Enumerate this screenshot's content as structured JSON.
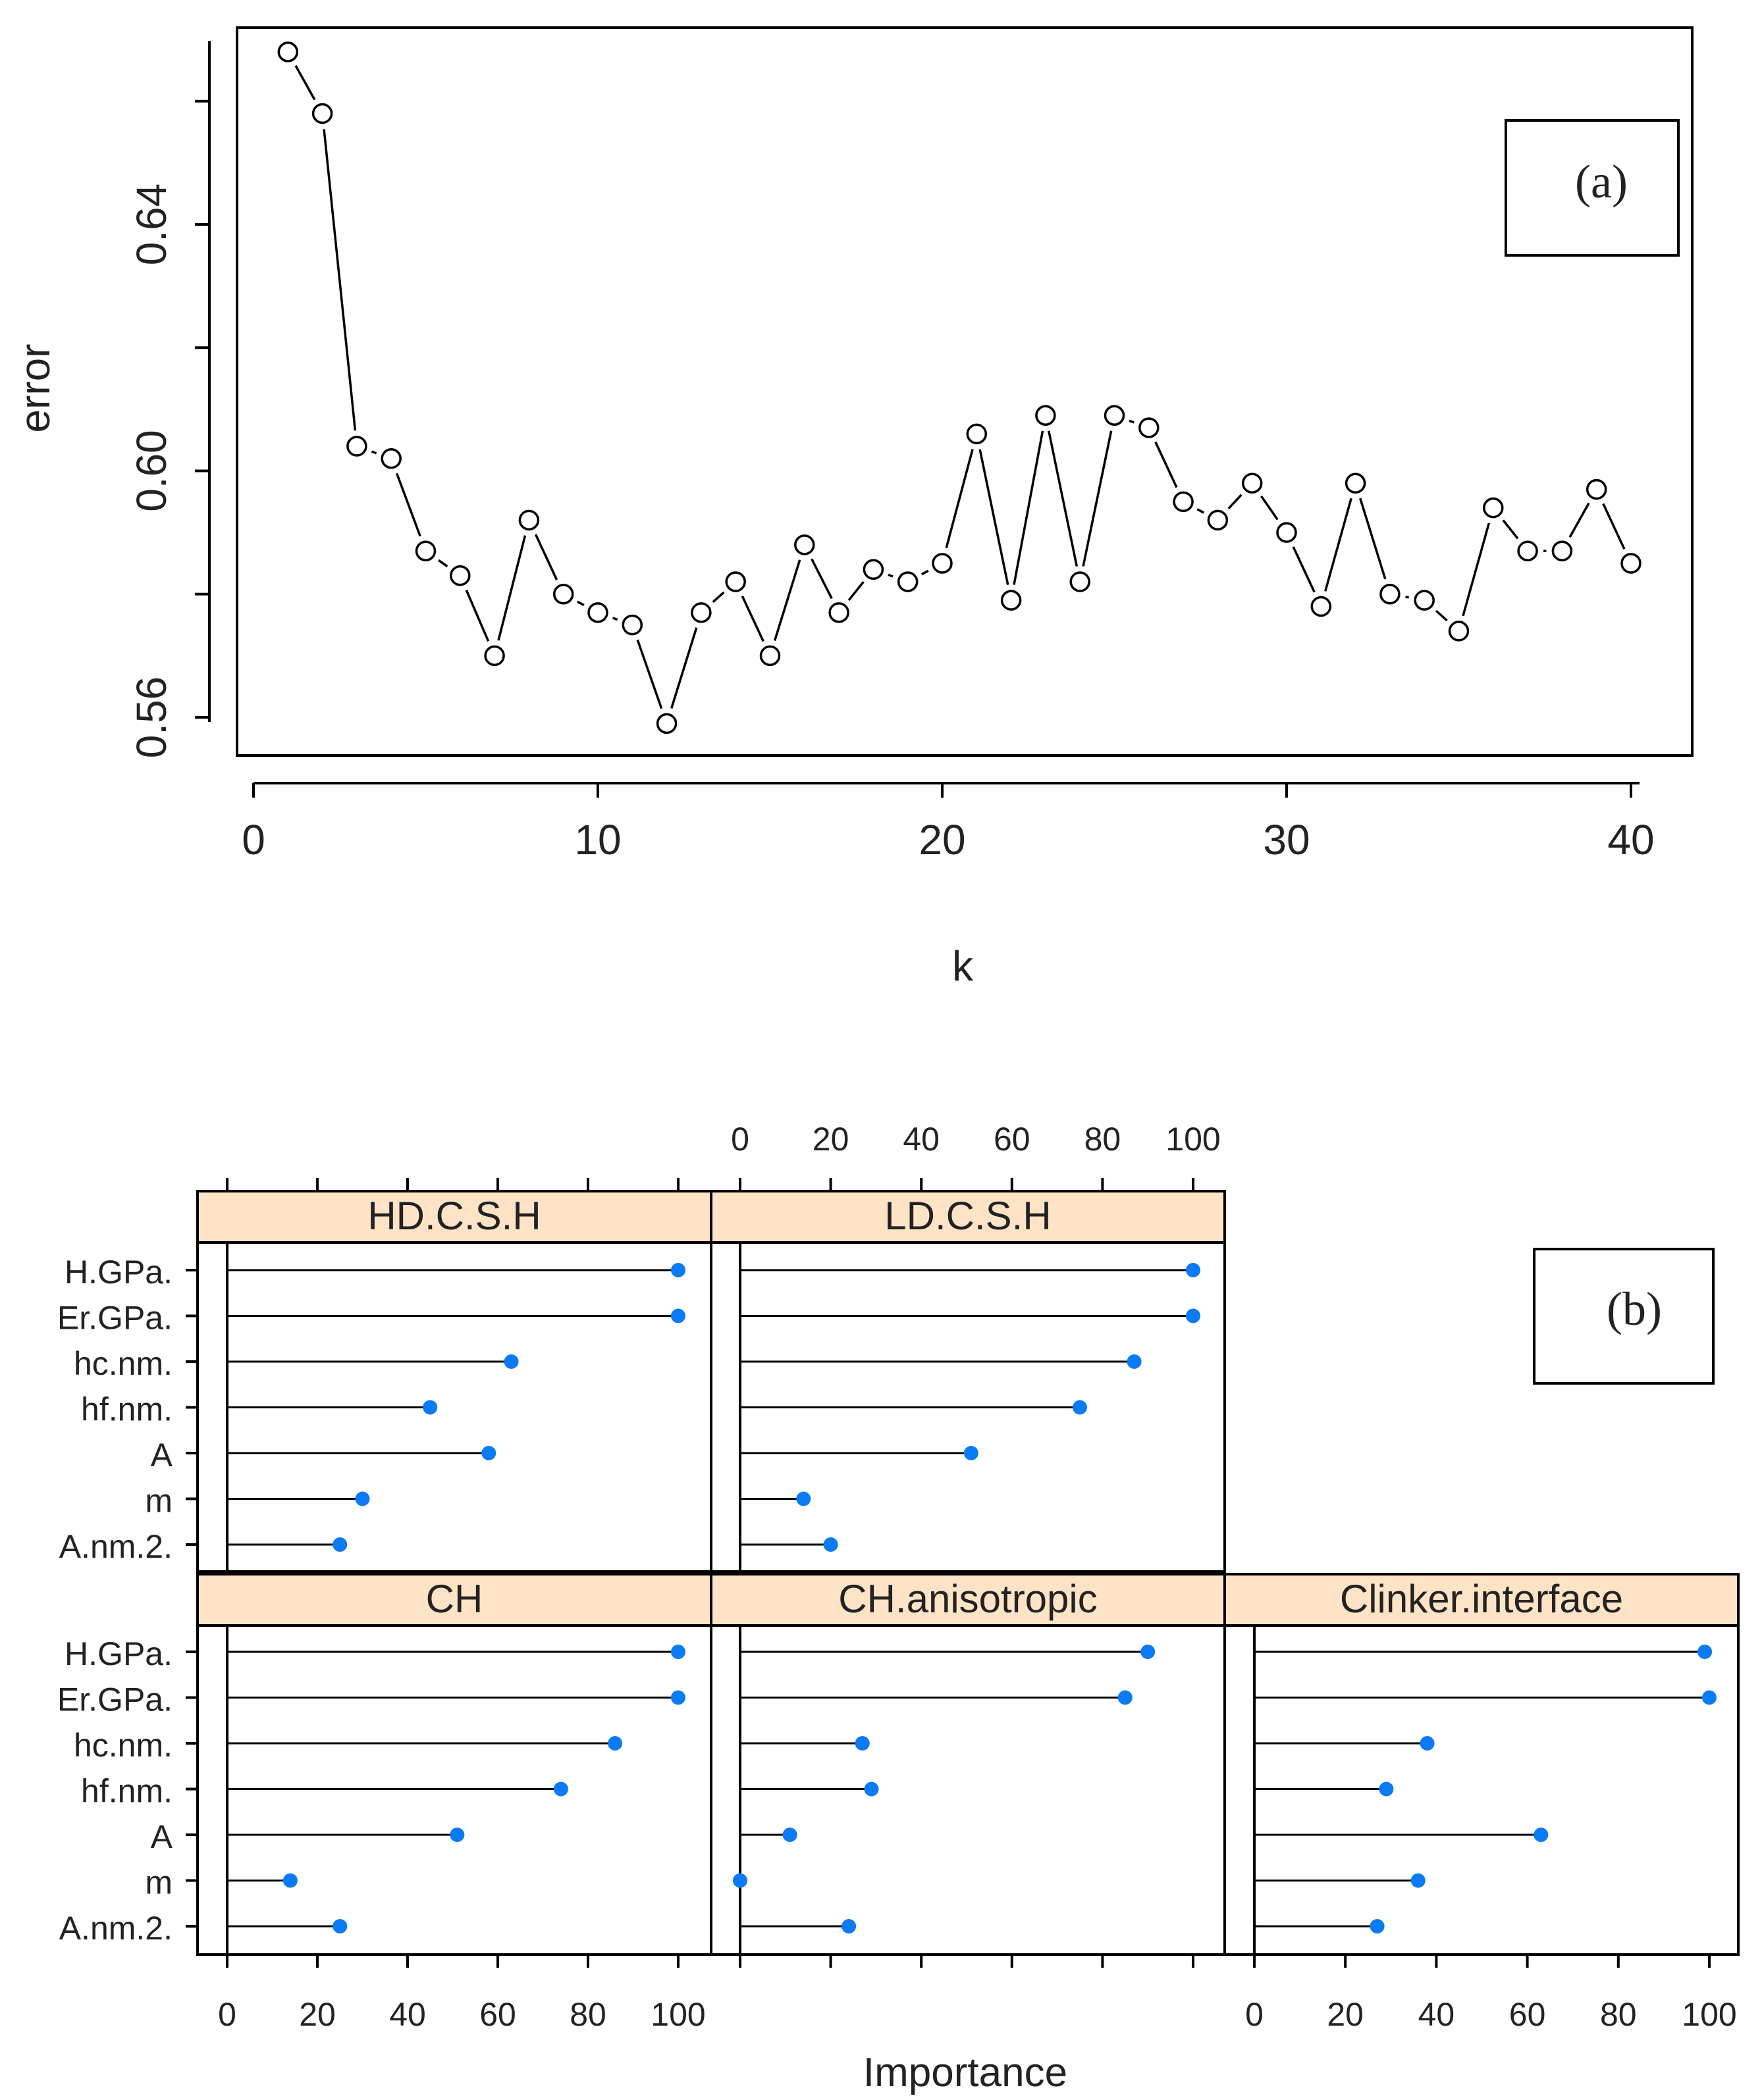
{
  "chart_data": [
    {
      "id": "a",
      "type": "scatter",
      "annotation": "(a)",
      "xlabel": "k",
      "ylabel": "error",
      "xlim": [
        0,
        40
      ],
      "ylim": [
        0.555,
        0.672
      ],
      "xticks": [
        "0",
        "10",
        "20",
        "30",
        "40"
      ],
      "yticks": [
        "0.56",
        "0.60",
        "0.64"
      ],
      "x": [
        1,
        2,
        3,
        4,
        5,
        6,
        7,
        8,
        9,
        10,
        11,
        12,
        13,
        14,
        15,
        16,
        17,
        18,
        19,
        20,
        21,
        22,
        23,
        24,
        25,
        26,
        27,
        28,
        29,
        30,
        31,
        32,
        33,
        34,
        35,
        36,
        37,
        38,
        39,
        40
      ],
      "y": [
        0.668,
        0.658,
        0.604,
        0.602,
        0.587,
        0.583,
        0.57,
        0.592,
        0.58,
        0.577,
        0.575,
        0.559,
        0.577,
        0.582,
        0.57,
        0.588,
        0.577,
        0.584,
        0.582,
        0.585,
        0.606,
        0.579,
        0.609,
        0.582,
        0.609,
        0.607,
        0.595,
        0.592,
        0.598,
        0.59,
        0.578,
        0.598,
        0.58,
        0.579,
        0.574,
        0.594,
        0.587,
        0.587,
        0.597,
        0.585
      ],
      "point_style": "open-circle",
      "line_style": "solid-with-gaps"
    },
    {
      "id": "b",
      "type": "dotplot-lattice",
      "annotation": "(b)",
      "xlabel": "Importance",
      "xlim": [
        0,
        100
      ],
      "xticks": [
        "0",
        "20",
        "40",
        "60",
        "80",
        "100"
      ],
      "variables": [
        "H.GPa.",
        "Er.GPa.",
        "hc.nm.",
        "hf.nm.",
        "A",
        "m",
        "A.nm.2."
      ],
      "marker_color": "#0a7af5",
      "panels": [
        {
          "name": "HD.C.S.H",
          "values": [
            100,
            100,
            63,
            45,
            58,
            30,
            25
          ]
        },
        {
          "name": "LD.C.S.H",
          "values": [
            100,
            100,
            87,
            75,
            51,
            14,
            20
          ]
        },
        {
          "name": "CH",
          "values": [
            100,
            100,
            86,
            74,
            51,
            14,
            25
          ]
        },
        {
          "name": "CH.anisotropic",
          "values": [
            90,
            85,
            27,
            29,
            11,
            0,
            24
          ]
        },
        {
          "name": "Clinker.interface",
          "values": [
            99,
            100,
            38,
            29,
            63,
            36,
            27
          ]
        }
      ]
    }
  ]
}
